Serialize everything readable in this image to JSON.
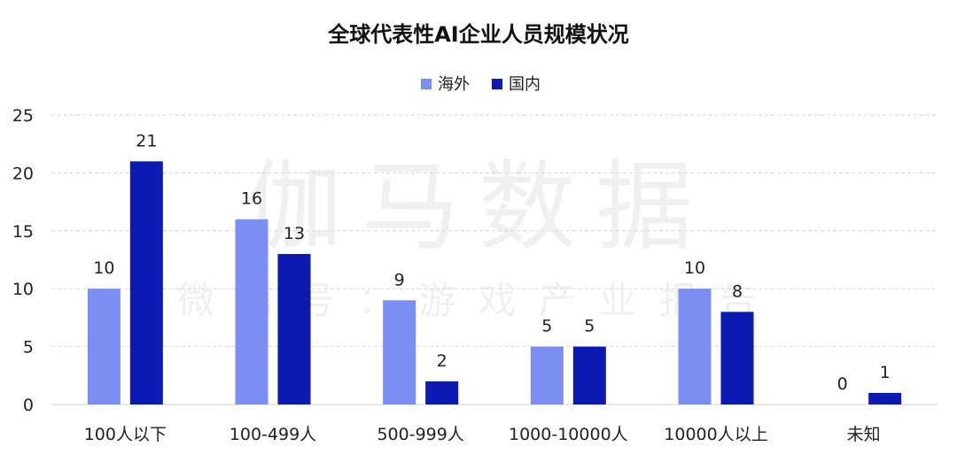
{
  "watermark": {
    "main": "伽马数据",
    "sub": "微信号：游戏产业报告"
  },
  "chart_data": {
    "type": "bar",
    "title": "全球代表性AI企业人员规模状况",
    "xlabel": "",
    "ylabel": "",
    "ylim": [
      0,
      25
    ],
    "yticks": [
      0,
      5,
      10,
      15,
      20,
      25
    ],
    "grid": true,
    "legend_position": "top-center",
    "categories": [
      "100人以下",
      "100-499人",
      "500-999人",
      "1000-10000人",
      "10000人以上",
      "未知"
    ],
    "series": [
      {
        "name": "海外",
        "color": "#7b8ef3",
        "values": [
          10,
          16,
          9,
          5,
          10,
          0
        ]
      },
      {
        "name": "国内",
        "color": "#0a1ab2",
        "values": [
          21,
          13,
          2,
          5,
          8,
          1
        ]
      }
    ]
  }
}
